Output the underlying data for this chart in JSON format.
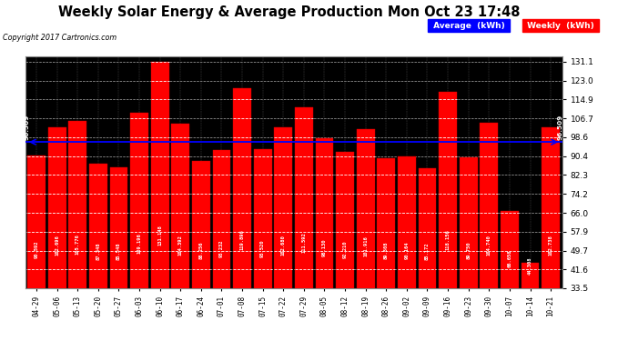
{
  "title": "Weekly Solar Energy & Average Production Mon Oct 23 17:48",
  "copyright": "Copyright 2017 Cartronics.com",
  "categories": [
    "04-29",
    "05-06",
    "05-13",
    "05-20",
    "05-27",
    "06-03",
    "06-10",
    "06-17",
    "06-24",
    "07-01",
    "07-08",
    "07-15",
    "07-22",
    "07-29",
    "08-05",
    "08-12",
    "08-19",
    "08-26",
    "09-02",
    "09-09",
    "09-16",
    "09-23",
    "09-30",
    "10-07",
    "10-14",
    "10-21"
  ],
  "values": [
    90.592,
    102.696,
    105.776,
    87.348,
    85.548,
    109.196,
    131.148,
    104.392,
    88.256,
    93.232,
    119.896,
    93.52,
    102.68,
    111.592,
    98.13,
    92.21,
    101.916,
    89.508,
    90.164,
    85.172,
    118.156,
    89.75,
    104.74,
    66.658,
    44.308,
    102.738
  ],
  "average_line": 96.509,
  "ylim_min": 33.5,
  "ylim_max": 133.5,
  "yticks": [
    33.5,
    41.6,
    49.7,
    57.9,
    66.0,
    74.2,
    82.3,
    90.4,
    98.6,
    106.7,
    114.9,
    123.0,
    131.1
  ],
  "bar_color": "#FF0000",
  "avg_line_color": "#0000FF",
  "fig_bg": "#FFFFFF",
  "plot_bg": "#000000",
  "avg_legend_bg": "#0000FF",
  "weekly_legend_bg": "#FF0000"
}
